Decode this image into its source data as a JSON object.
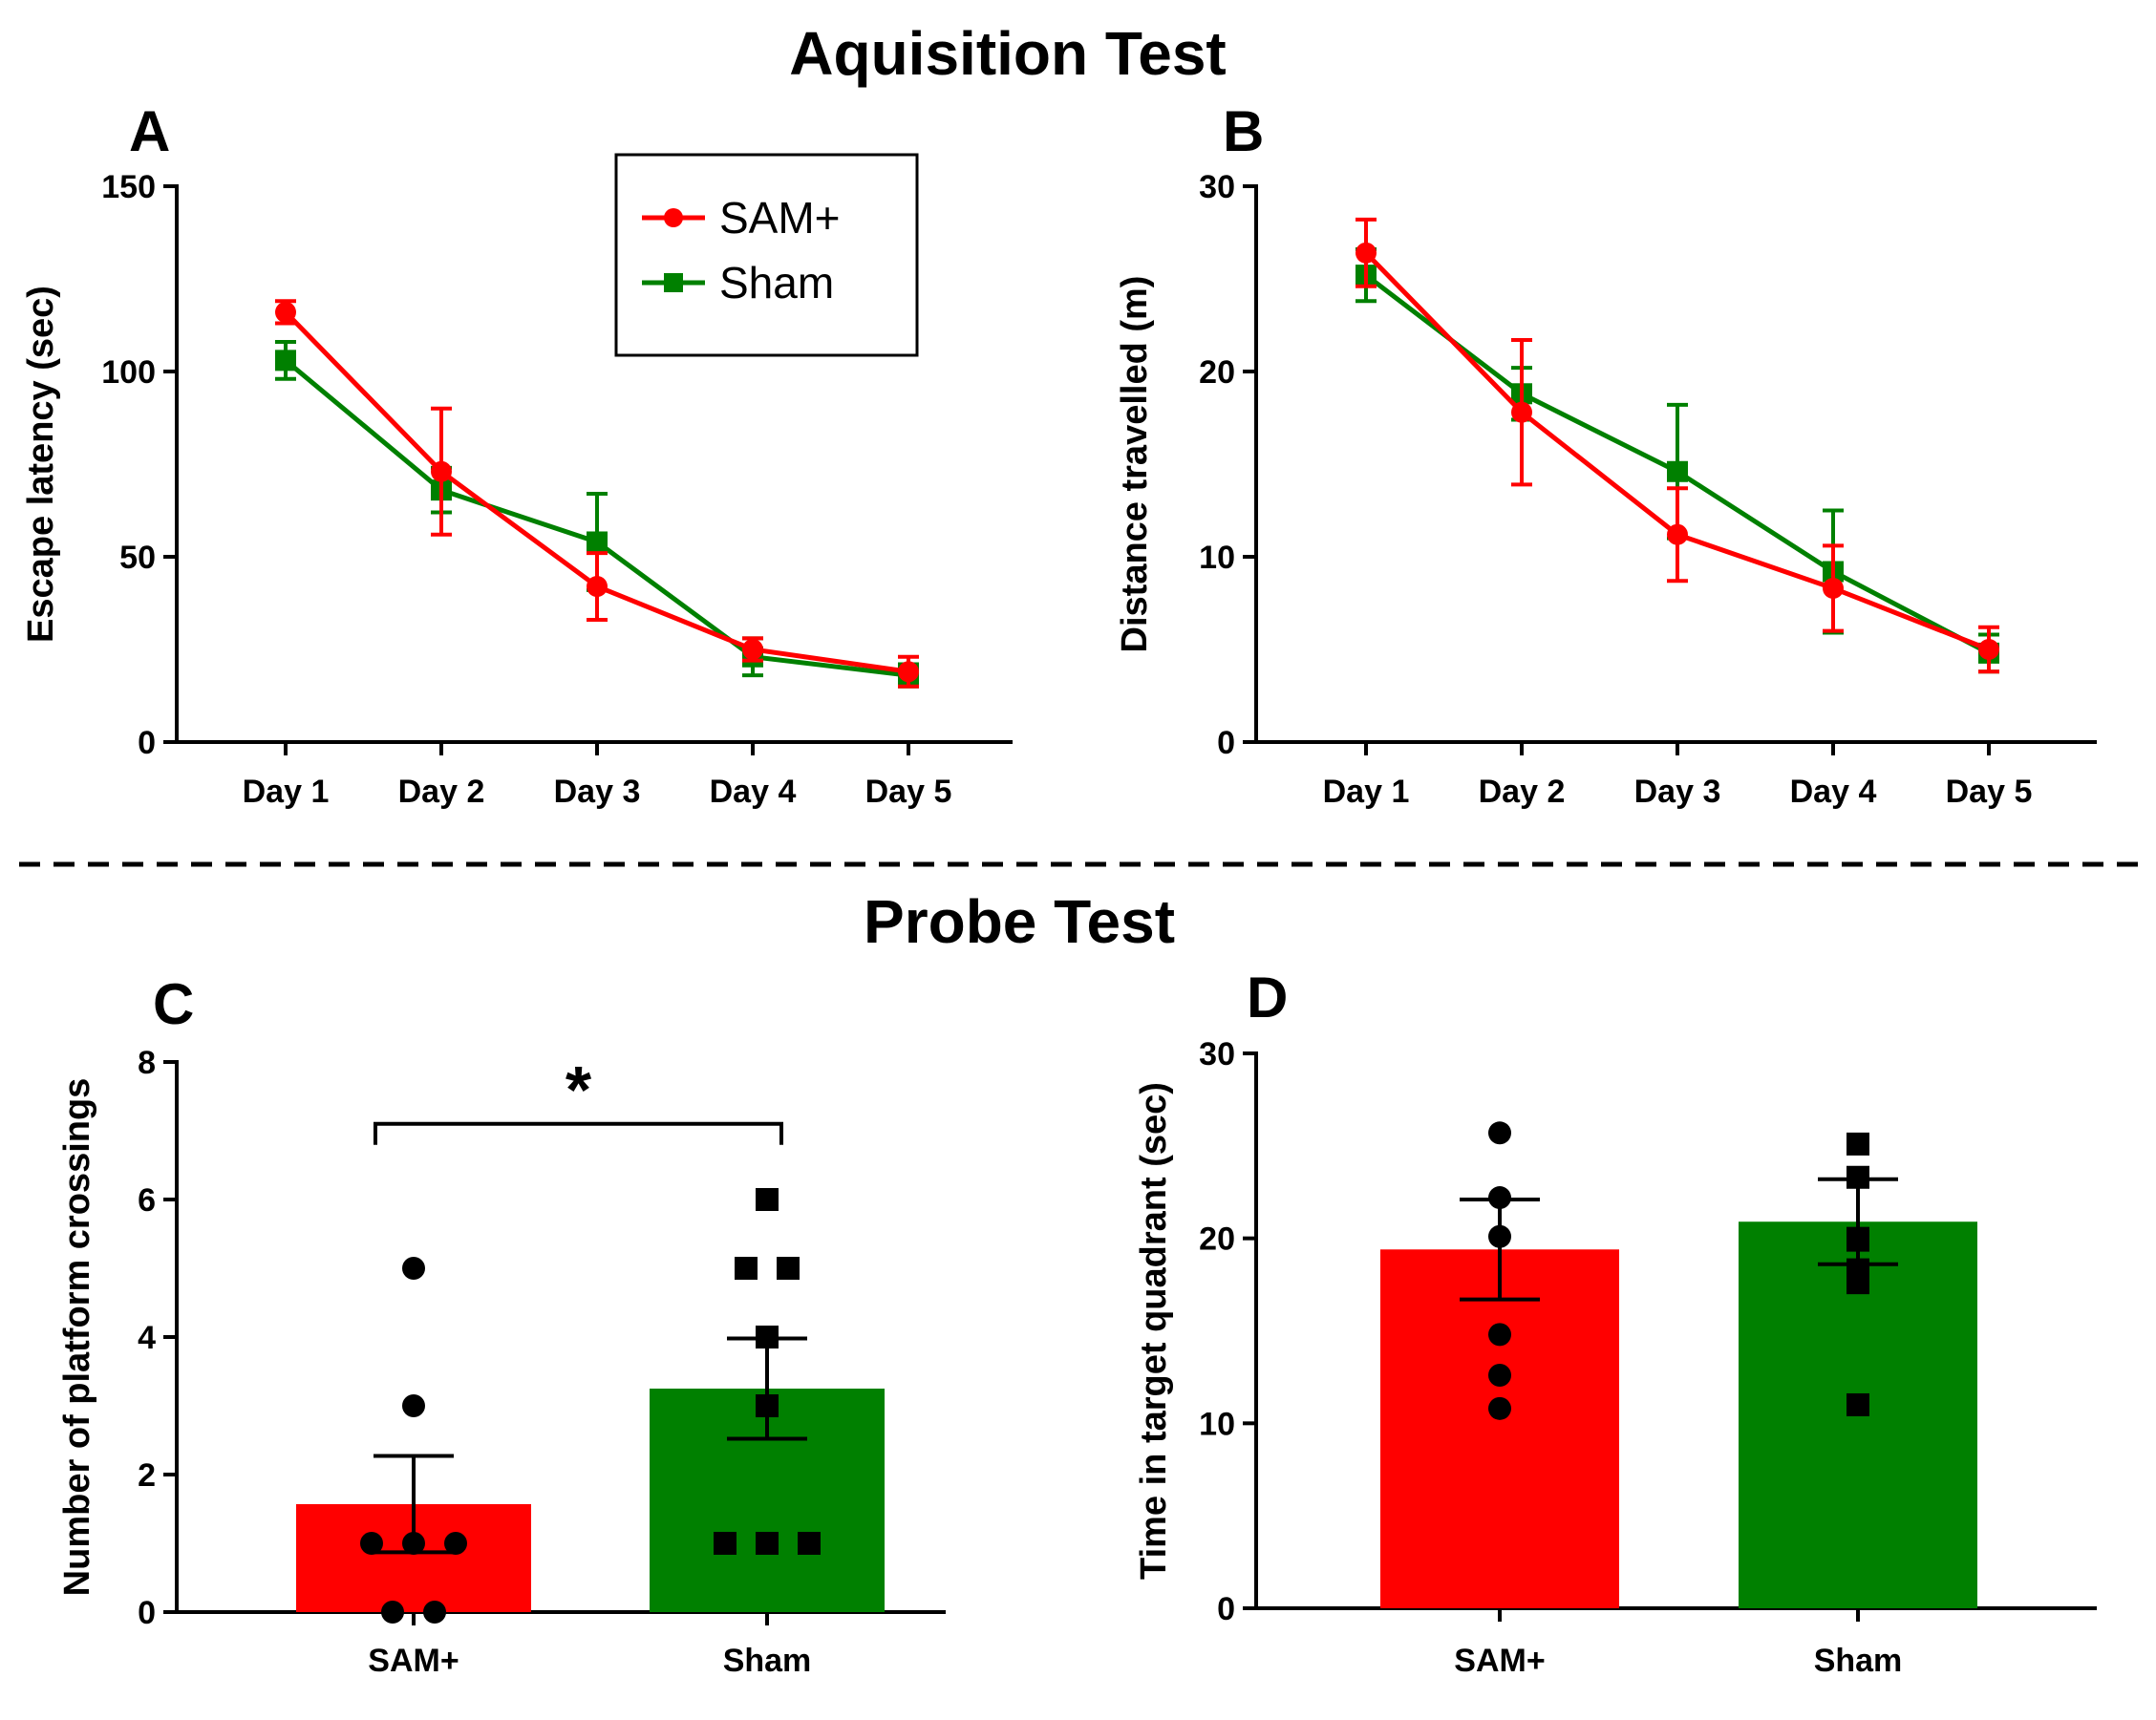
{
  "figure": {
    "acquisition_title": "Aquisition Test",
    "probe_title": "Probe Test",
    "colors": {
      "sam": "#ff0000",
      "sham": "#008000",
      "points": "#000000"
    }
  },
  "chart_data": [
    {
      "panel": "A",
      "type": "line",
      "categories": [
        "Day 1",
        "Day 2",
        "Day 3",
        "Day 4",
        "Day 5"
      ],
      "ylabel": "Escape latency (sec)",
      "ylim": [
        0,
        150
      ],
      "yticks": [
        0,
        50,
        100,
        150
      ],
      "legend": {
        "placement": "top-center"
      },
      "series": [
        {
          "name": "SAM+",
          "color": "#ff0000",
          "marker": "circle",
          "values": [
            116,
            73,
            42,
            25,
            19
          ],
          "errors": [
            3,
            17,
            9,
            3,
            4
          ]
        },
        {
          "name": "Sham",
          "color": "#008000",
          "marker": "square",
          "values": [
            103,
            68,
            54,
            23,
            18
          ],
          "errors": [
            5,
            6,
            13,
            5,
            3
          ]
        }
      ]
    },
    {
      "panel": "B",
      "type": "line",
      "categories": [
        "Day 1",
        "Day 2",
        "Day 3",
        "Day 4",
        "Day 5"
      ],
      "ylabel": "Distance travelled (m)",
      "ylim": [
        0,
        30
      ],
      "yticks": [
        0,
        10,
        20,
        30
      ],
      "series": [
        {
          "name": "SAM+",
          "color": "#ff0000",
          "marker": "circle",
          "values": [
            26.4,
            17.8,
            11.2,
            8.3,
            5.0
          ],
          "errors": [
            1.8,
            3.9,
            2.5,
            2.3,
            1.2
          ]
        },
        {
          "name": "Sham",
          "color": "#008000",
          "marker": "square",
          "values": [
            25.2,
            18.8,
            14.6,
            9.2,
            4.8
          ],
          "errors": [
            1.4,
            1.4,
            3.6,
            3.3,
            1.0
          ]
        }
      ]
    },
    {
      "panel": "C",
      "type": "bar",
      "categories": [
        "SAM+",
        "Sham"
      ],
      "ylabel": "Number of platform crossings",
      "ylim": [
        0,
        8
      ],
      "yticks": [
        0,
        2,
        4,
        6,
        8
      ],
      "values": [
        1.57,
        3.25
      ],
      "errors": [
        0.7,
        0.73
      ],
      "significance": "*",
      "points": [
        [
          5,
          3,
          1,
          1,
          1,
          0,
          0
        ],
        [
          6,
          5,
          5,
          4,
          3,
          1,
          1,
          1
        ]
      ]
    },
    {
      "panel": "D",
      "type": "bar",
      "categories": [
        "SAM+",
        "Sham"
      ],
      "ylabel": "Time in target quadrant (sec)",
      "ylim": [
        0,
        30
      ],
      "yticks": [
        0,
        10,
        20,
        30
      ],
      "values": [
        19.4,
        20.9
      ],
      "errors": [
        2.7,
        2.3
      ],
      "points": [
        [
          25.7,
          22.2,
          20.1,
          14.8,
          12.6,
          10.8
        ],
        [
          25.1,
          23.3,
          20.0,
          19.9,
          18.3,
          17.6,
          11.0
        ]
      ]
    }
  ]
}
